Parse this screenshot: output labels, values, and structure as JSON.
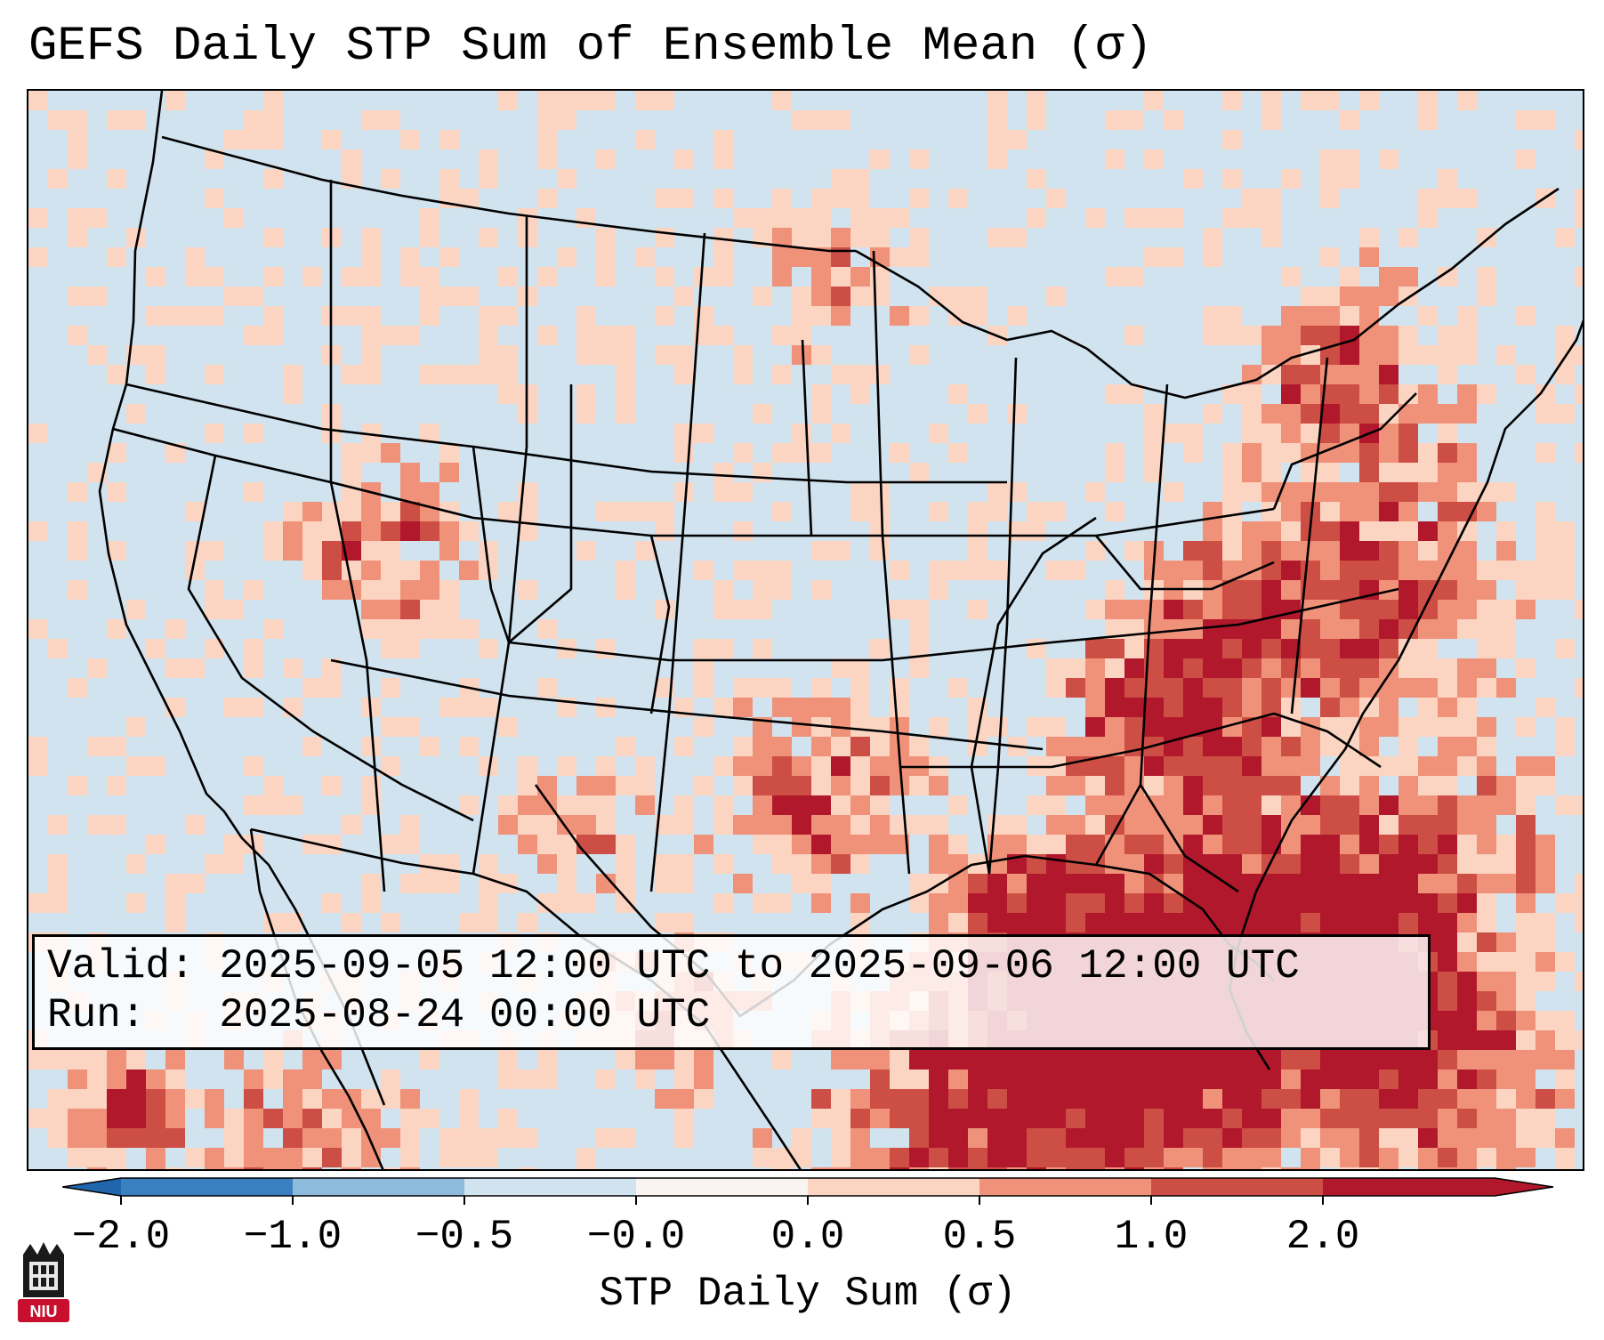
{
  "title": "GEFS Daily STP Sum of Ensemble Mean (σ)",
  "info": {
    "valid_line": "Valid: 2025-09-05 12:00 UTC to 2025-09-06 12:00 UTC",
    "run_line": "Run:   2025-08-24 00:00 UTC"
  },
  "colorbar": {
    "label": "STP Daily Sum (σ)",
    "ticks": [
      "−2.0",
      "−1.0",
      "−0.5",
      "−0.0",
      "0.0",
      "0.5",
      "1.0",
      "2.0"
    ],
    "colors": [
      "#3a7fbf",
      "#8dbbdb",
      "#d0e3ef",
      "#f9f4f2",
      "#fbd4c2",
      "#f0927a",
      "#cd4e44",
      "#b2182b"
    ],
    "under_color": "#2166ac",
    "over_color": "#b2182b"
  },
  "logo": {
    "text": "NIU",
    "name": "niu-logo"
  },
  "map": {
    "background_color": "#d0e3ef",
    "level_colors": {
      "light": "#fbd4c2",
      "medium": "#f0927a",
      "strong": "#cd4e44",
      "extreme": "#b2182b"
    }
  }
}
